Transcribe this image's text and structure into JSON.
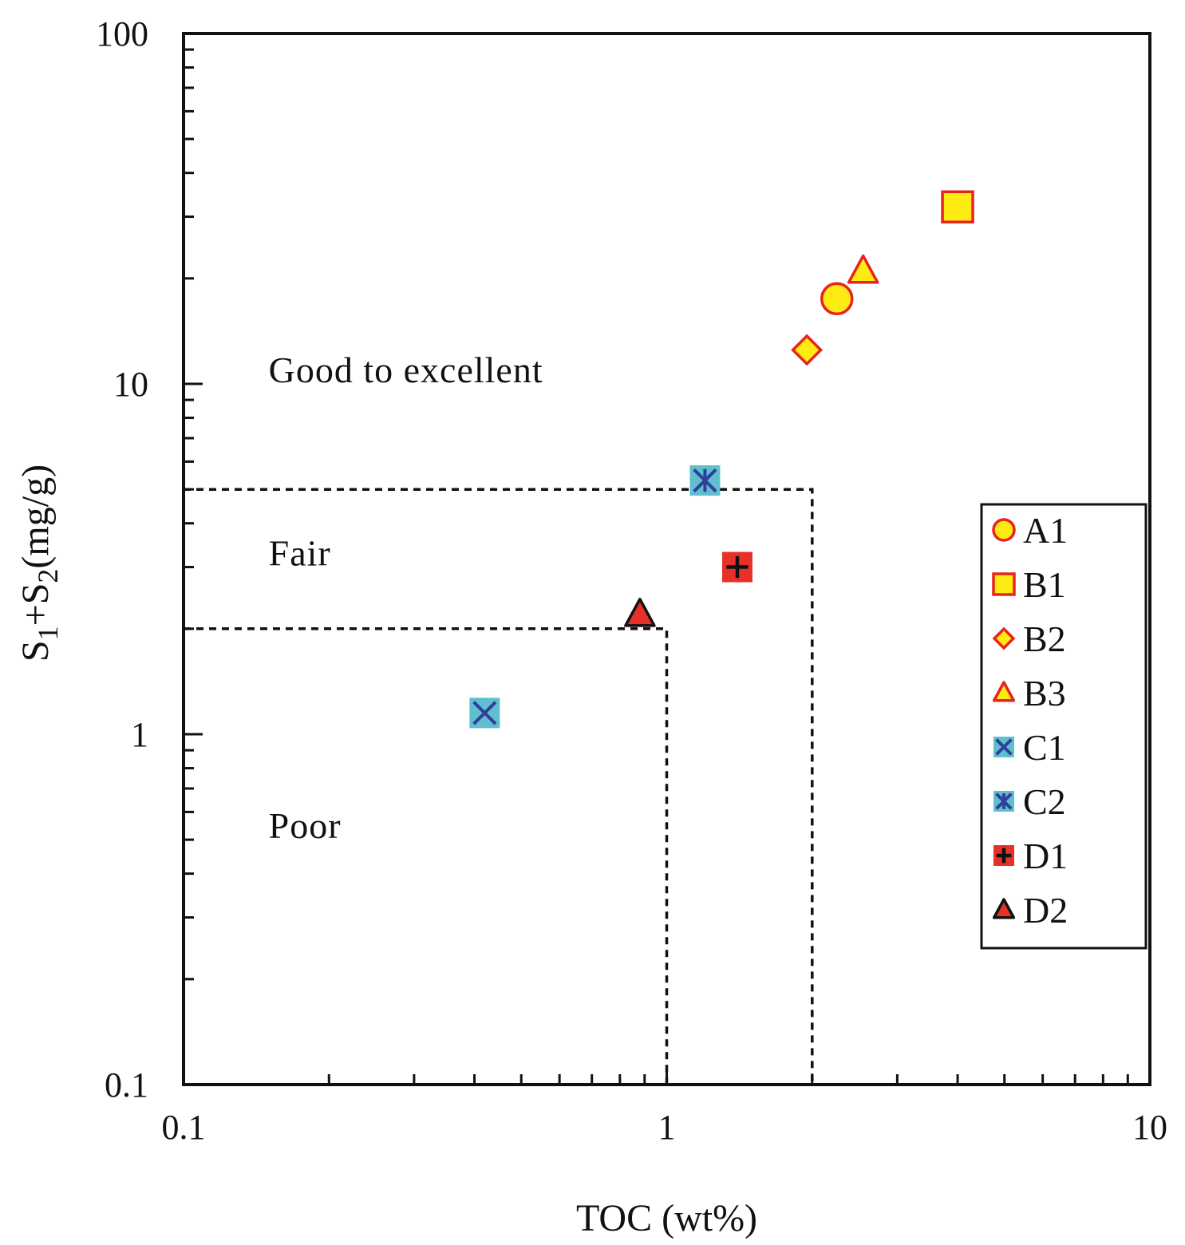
{
  "chart_data": {
    "type": "scatter",
    "xlabel": "TOC (wt%)",
    "ylabel_parts": {
      "s": "S",
      "sub1": "1",
      "plus": "+",
      "sub2": "2",
      "unit": "(mg/g)"
    },
    "x_scale": "log",
    "y_scale": "log",
    "xlim": [
      0.1,
      10
    ],
    "ylim": [
      0.1,
      100
    ],
    "x_ticks": [
      {
        "value": 0.1,
        "label": "0.1"
      },
      {
        "value": 1,
        "label": "1"
      },
      {
        "value": 10,
        "label": "10"
      }
    ],
    "y_ticks": [
      {
        "value": 0.1,
        "label": "0.1"
      },
      {
        "value": 1,
        "label": "1"
      },
      {
        "value": 10,
        "label": "10"
      },
      {
        "value": 100,
        "label": "100"
      }
    ],
    "grid": false,
    "legend_position": "right",
    "regions": [
      {
        "name": "poor",
        "label": "Poor",
        "label_at": [
          0.15,
          0.55
        ]
      },
      {
        "name": "fair",
        "label": "Fair",
        "label_at": [
          0.15,
          3.3
        ]
      },
      {
        "name": "good",
        "label": "Good to excellent",
        "label_at": [
          0.15,
          11
        ]
      }
    ],
    "boundaries": [
      {
        "name": "poor-fair",
        "points": [
          [
            0.1,
            2
          ],
          [
            1,
            2
          ],
          [
            1,
            0.1
          ]
        ]
      },
      {
        "name": "fair-good",
        "points": [
          [
            0.1,
            5
          ],
          [
            2,
            5
          ],
          [
            2,
            0.1
          ]
        ]
      }
    ],
    "series": [
      {
        "name": "A1",
        "marker": "circle",
        "fill": "#ffeb14",
        "stroke": "#e8231f",
        "points": [
          [
            2.25,
            17.5
          ]
        ]
      },
      {
        "name": "B1",
        "marker": "square",
        "fill": "#ffeb14",
        "stroke": "#e8231f",
        "points": [
          [
            4.0,
            32
          ]
        ]
      },
      {
        "name": "B2",
        "marker": "diamond",
        "fill": "#ffeb14",
        "stroke": "#e8231f",
        "points": [
          [
            1.95,
            12.5
          ]
        ]
      },
      {
        "name": "B3",
        "marker": "triangle",
        "fill": "#ffeb14",
        "stroke": "#e8231f",
        "points": [
          [
            2.55,
            21
          ]
        ]
      },
      {
        "name": "C1",
        "marker": "x-box",
        "fill": "#5fbfcf",
        "stroke": "#2f3f9a",
        "points": [
          [
            0.42,
            1.15
          ]
        ]
      },
      {
        "name": "C2",
        "marker": "asterisk-box",
        "fill": "#5fbfcf",
        "stroke": "#2f3f9a",
        "points": [
          [
            1.2,
            5.3
          ]
        ]
      },
      {
        "name": "D1",
        "marker": "plus-box",
        "fill": "#e8302a",
        "stroke": "#111111",
        "points": [
          [
            1.4,
            3.0
          ]
        ]
      },
      {
        "name": "D2",
        "marker": "triangle",
        "fill": "#e8302a",
        "stroke": "#111111",
        "points": [
          [
            0.88,
            2.2
          ]
        ]
      }
    ]
  }
}
